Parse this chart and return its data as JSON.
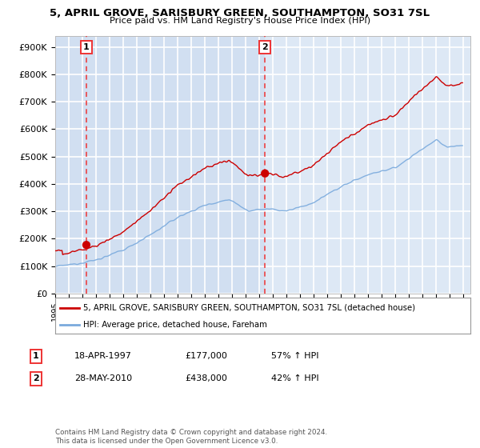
{
  "title": "5, APRIL GROVE, SARISBURY GREEN, SOUTHAMPTON, SO31 7SL",
  "subtitle": "Price paid vs. HM Land Registry's House Price Index (HPI)",
  "ylabel_ticks": [
    "£0",
    "£100K",
    "£200K",
    "£300K",
    "£400K",
    "£500K",
    "£600K",
    "£700K",
    "£800K",
    "£900K"
  ],
  "ytick_vals": [
    0,
    100000,
    200000,
    300000,
    400000,
    500000,
    600000,
    700000,
    800000,
    900000
  ],
  "ylim": [
    0,
    940000
  ],
  "xlim_start": 1995.0,
  "xlim_end": 2025.5,
  "point1": {
    "date_dec": 1997.29,
    "value": 177000,
    "label": "1",
    "date_str": "18-APR-1997",
    "price_str": "£177,000",
    "hpi_str": "57% ↑ HPI"
  },
  "point2": {
    "date_dec": 2010.41,
    "value": 438000,
    "label": "2",
    "date_str": "28-MAY-2010",
    "price_str": "£438,000",
    "hpi_str": "42% ↑ HPI"
  },
  "legend_line1": "5, APRIL GROVE, SARISBURY GREEN, SOUTHAMPTON, SO31 7SL (detached house)",
  "legend_line2": "HPI: Average price, detached house, Fareham",
  "footnote": "Contains HM Land Registry data © Crown copyright and database right 2024.\nThis data is licensed under the Open Government Licence v3.0.",
  "red_color": "#cc0000",
  "blue_color": "#7aaadd",
  "bg_color": "#dde8f5",
  "bg_color_right": "#eef2f8",
  "grid_color": "#ffffff",
  "dashed_line_color": "#ee3333",
  "shade_left": "#c8d8ef",
  "shade_mid": "#d8e5f5"
}
